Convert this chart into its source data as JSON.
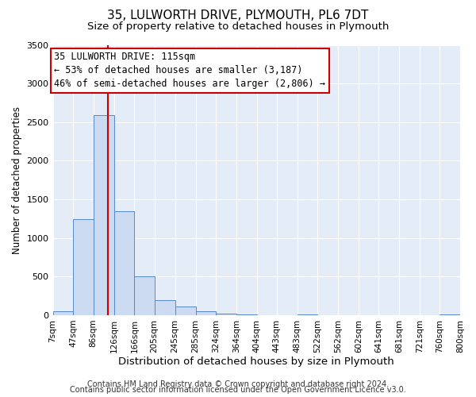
{
  "title": "35, LULWORTH DRIVE, PLYMOUTH, PL6 7DT",
  "subtitle": "Size of property relative to detached houses in Plymouth",
  "xlabel": "Distribution of detached houses by size in Plymouth",
  "ylabel": "Number of detached properties",
  "bin_labels": [
    "7sqm",
    "47sqm",
    "86sqm",
    "126sqm",
    "166sqm",
    "205sqm",
    "245sqm",
    "285sqm",
    "324sqm",
    "364sqm",
    "404sqm",
    "443sqm",
    "483sqm",
    "522sqm",
    "562sqm",
    "602sqm",
    "641sqm",
    "681sqm",
    "721sqm",
    "760sqm",
    "800sqm"
  ],
  "bar_values": [
    50,
    1240,
    2590,
    1350,
    500,
    200,
    110,
    55,
    20,
    5,
    0,
    0,
    5,
    0,
    0,
    0,
    0,
    0,
    0,
    5,
    0
  ],
  "bar_left_edges": [
    7,
    47,
    86,
    126,
    166,
    205,
    245,
    285,
    324,
    364,
    404,
    443,
    483,
    522,
    562,
    602,
    641,
    681,
    721,
    760,
    800
  ],
  "bar_color": "#ccdaf2",
  "bar_edge_color": "#5588cc",
  "property_line_x": 115,
  "property_line_color": "#cc0000",
  "annotation_line1": "35 LULWORTH DRIVE: 115sqm",
  "annotation_line2": "← 53% of detached houses are smaller (3,187)",
  "annotation_line3": "46% of semi-detached houses are larger (2,806) →",
  "annotation_box_color": "#ffffff",
  "annotation_box_edge": "#cc0000",
  "ylim": [
    0,
    3500
  ],
  "yticks": [
    0,
    500,
    1000,
    1500,
    2000,
    2500,
    3000,
    3500
  ],
  "background_color": "#ffffff",
  "plot_bg_color": "#e4ecf7",
  "footer_line1": "Contains HM Land Registry data © Crown copyright and database right 2024.",
  "footer_line2": "Contains public sector information licensed under the Open Government Licence v3.0.",
  "title_fontsize": 11,
  "subtitle_fontsize": 9.5,
  "xlabel_fontsize": 9.5,
  "ylabel_fontsize": 8.5,
  "annotation_fontsize": 8.5,
  "footer_fontsize": 7,
  "grid_color": "#ffffff",
  "tick_label_fontsize": 7.5
}
